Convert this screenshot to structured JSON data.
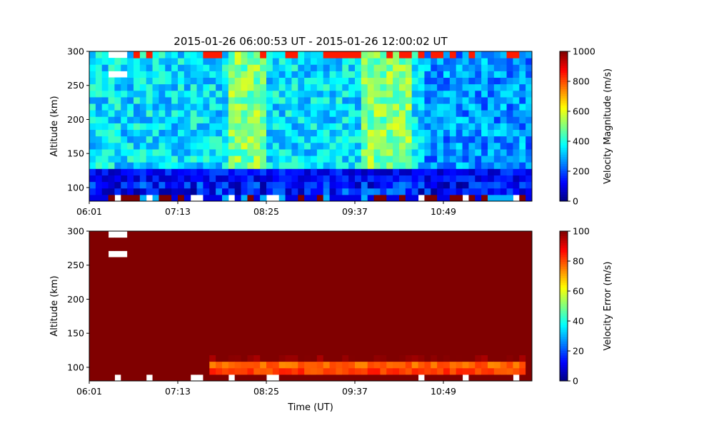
{
  "title": "2015-01-26 06:00:53 UT - 2015-01-26 12:00:02 UT",
  "colormap": "jet",
  "chart_data": [
    {
      "type": "heatmap",
      "ylabel": "Altitude (km)",
      "xlabel": "",
      "x_tick_labels": [
        "06:01",
        "07:13",
        "08:25",
        "09:37",
        "10:49"
      ],
      "x_tick_minutes": [
        0,
        72,
        144,
        216,
        288
      ],
      "xlim_minutes": [
        0,
        360
      ],
      "ylim": [
        80,
        300
      ],
      "y_ticks": [
        100,
        150,
        200,
        250,
        300
      ],
      "colorbar": {
        "label": "Velocity Magnitude (m/s)",
        "min": 0,
        "max": 1000,
        "ticks": [
          0,
          200,
          400,
          600,
          800,
          1000
        ]
      }
    },
    {
      "type": "heatmap",
      "ylabel": "Altitude (km)",
      "xlabel": "Time (UT)",
      "x_tick_labels": [
        "06:01",
        "07:13",
        "08:25",
        "09:37",
        "10:49"
      ],
      "x_tick_minutes": [
        0,
        72,
        144,
        216,
        288
      ],
      "xlim_minutes": [
        0,
        360
      ],
      "ylim": [
        80,
        300
      ],
      "y_ticks": [
        100,
        150,
        200,
        250,
        300
      ],
      "colorbar": {
        "label": "Velocity Error (m/s)",
        "min": 0,
        "max": 100,
        "ticks": [
          0,
          20,
          40,
          60,
          80,
          100
        ]
      }
    }
  ]
}
